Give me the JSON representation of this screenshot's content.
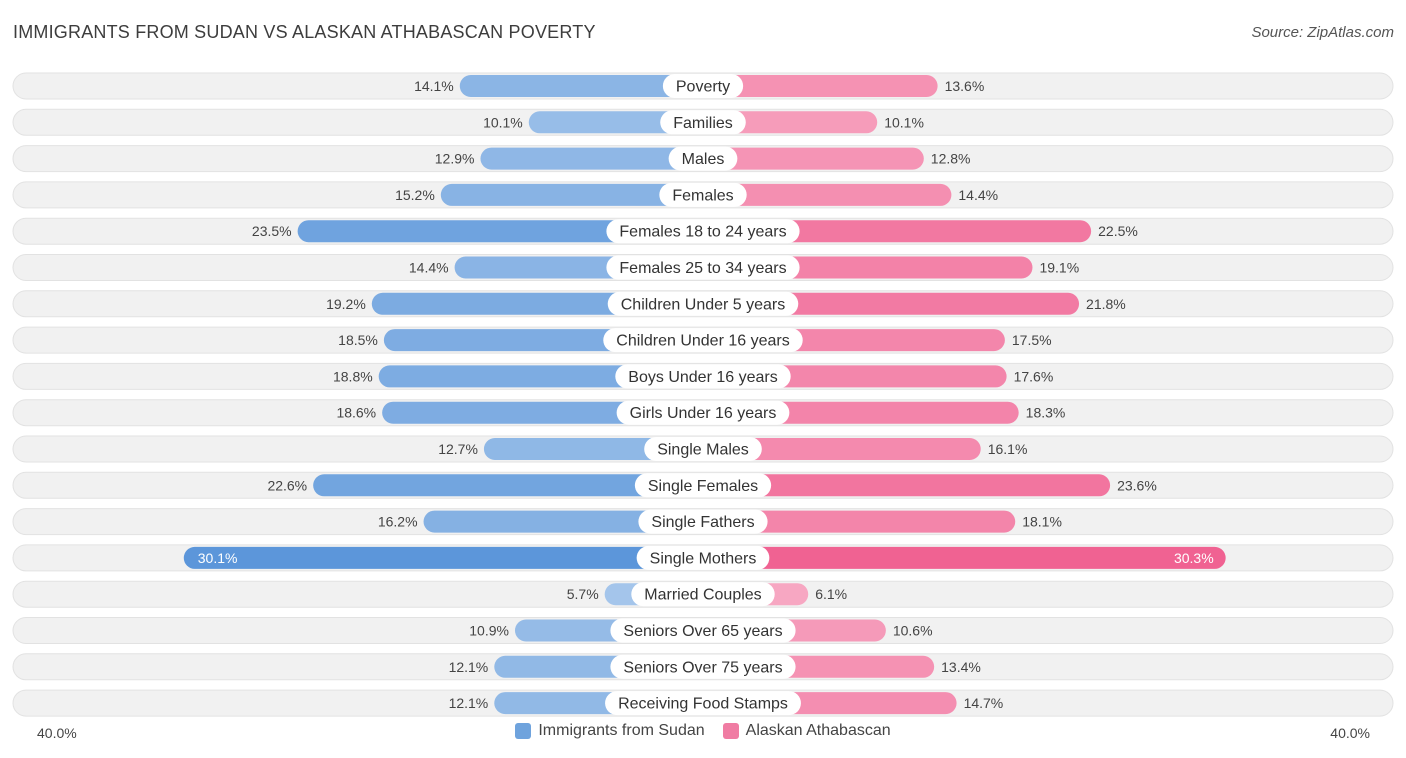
{
  "title": "IMMIGRANTS FROM SUDAN VS ALASKAN ATHABASCAN POVERTY",
  "source": "Source: ZipAtlas.com",
  "axis": {
    "left_label": "40.0%",
    "right_label": "40.0%"
  },
  "legend": [
    {
      "name": "Immigrants from Sudan",
      "color": "#6fa3dd"
    },
    {
      "name": "Alaskan Athabascan",
      "color": "#f07ca3"
    }
  ],
  "chart_data": {
    "type": "bar",
    "orientation": "horizontal-diverging",
    "title": "IMMIGRANTS FROM SUDAN VS ALASKAN ATHABASCAN POVERTY",
    "xlim": [
      -40,
      40
    ],
    "unit": "%",
    "categories": [
      "Poverty",
      "Families",
      "Males",
      "Females",
      "Females 18 to 24 years",
      "Females 25 to 34 years",
      "Children Under 5 years",
      "Children Under 16 years",
      "Boys Under 16 years",
      "Girls Under 16 years",
      "Single Males",
      "Single Females",
      "Single Fathers",
      "Single Mothers",
      "Married Couples",
      "Seniors Over 65 years",
      "Seniors Over 75 years",
      "Receiving Food Stamps"
    ],
    "series": [
      {
        "name": "Immigrants from Sudan",
        "values": [
          14.1,
          10.1,
          12.9,
          15.2,
          23.5,
          14.4,
          19.2,
          18.5,
          18.8,
          18.6,
          12.7,
          22.6,
          16.2,
          30.1,
          5.7,
          10.9,
          12.1,
          12.1
        ],
        "labels": [
          "14.1%",
          "10.1%",
          "12.9%",
          "15.2%",
          "23.5%",
          "14.4%",
          "19.2%",
          "18.5%",
          "18.8%",
          "18.6%",
          "12.7%",
          "22.6%",
          "16.2%",
          "30.1%",
          "5.7%",
          "10.9%",
          "12.1%",
          "12.1%"
        ]
      },
      {
        "name": "Alaskan Athabascan",
        "values": [
          13.6,
          10.1,
          12.8,
          14.4,
          22.5,
          19.1,
          21.8,
          17.5,
          17.6,
          18.3,
          16.1,
          23.6,
          18.1,
          30.3,
          6.1,
          10.6,
          13.4,
          14.7
        ],
        "labels": [
          "13.6%",
          "10.1%",
          "12.8%",
          "14.4%",
          "22.5%",
          "19.1%",
          "21.8%",
          "17.5%",
          "17.6%",
          "18.3%",
          "16.1%",
          "23.6%",
          "18.1%",
          "30.3%",
          "6.1%",
          "10.6%",
          "13.4%",
          "14.7%"
        ]
      }
    ]
  }
}
